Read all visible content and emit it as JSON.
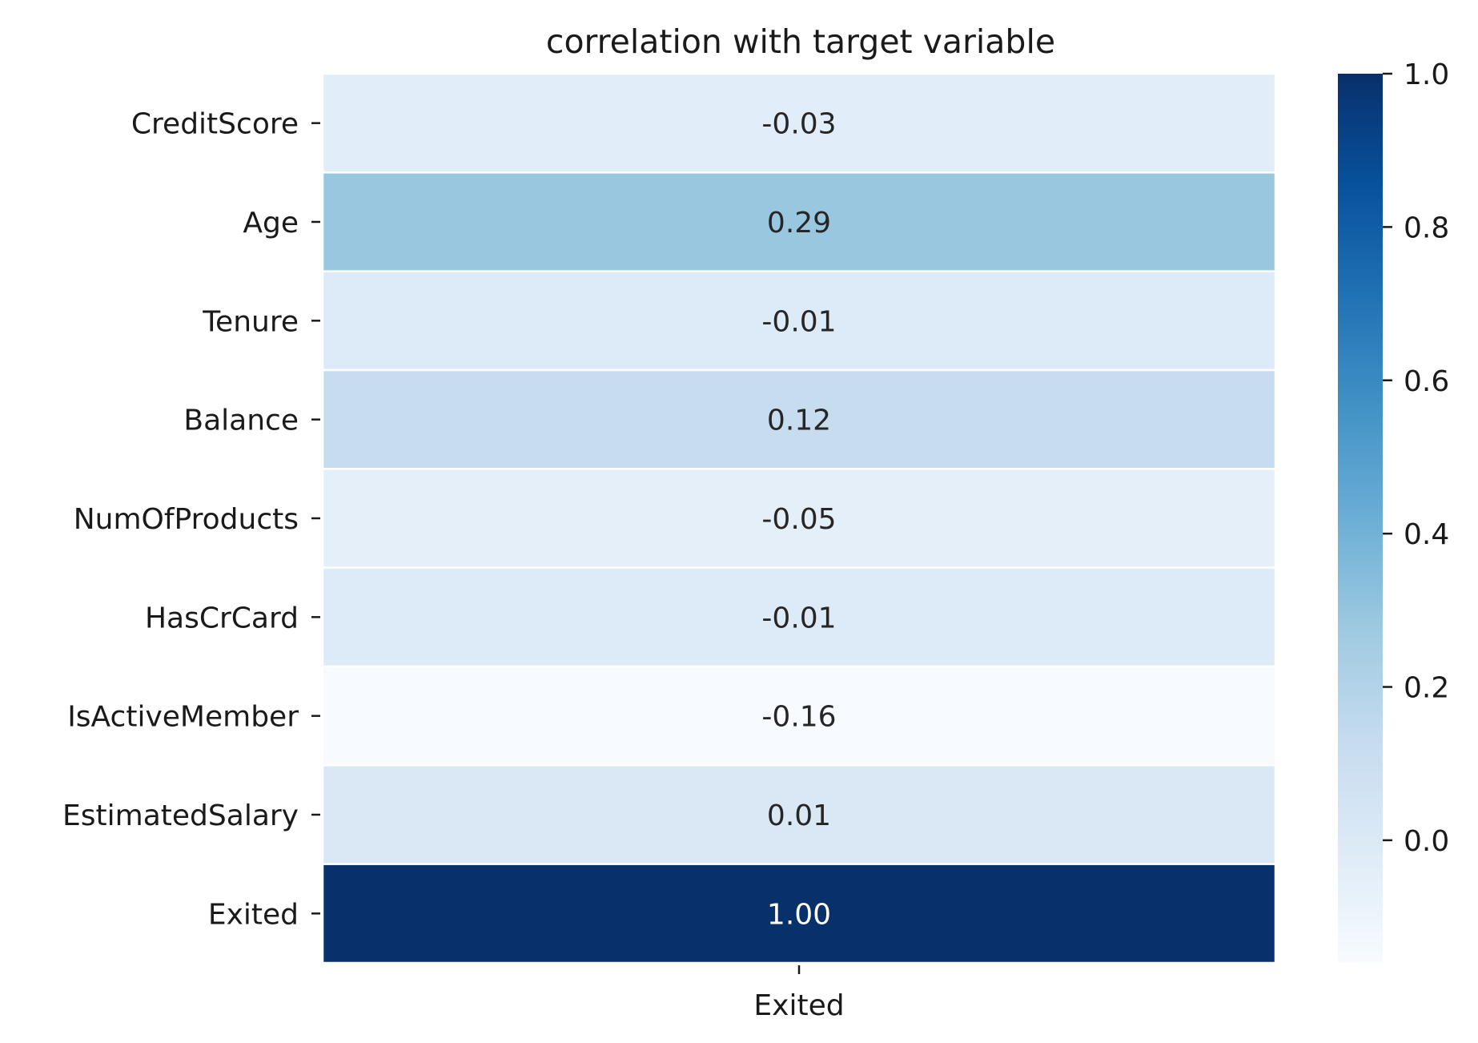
{
  "chart_data": {
    "type": "heatmap",
    "title": "correlation with target variable",
    "rows": [
      "CreditScore",
      "Age",
      "Tenure",
      "Balance",
      "NumOfProducts",
      "HasCrCard",
      "IsActiveMember",
      "EstimatedSalary",
      "Exited"
    ],
    "columns": [
      "Exited"
    ],
    "values": [
      -0.03,
      0.29,
      -0.01,
      0.12,
      -0.05,
      -0.01,
      -0.16,
      0.01,
      1.0
    ],
    "value_labels": [
      "-0.03",
      "0.29",
      "-0.01",
      "0.12",
      "-0.05",
      "-0.01",
      "-0.16",
      "0.01",
      "1.00"
    ],
    "colormap": "Blues",
    "colorbar": {
      "range": [
        -0.16,
        1.0
      ],
      "ticks": [
        0.0,
        0.2,
        0.4,
        0.6,
        0.8,
        1.0
      ],
      "tick_labels": [
        "0.0",
        "0.2",
        "0.4",
        "0.6",
        "0.8",
        "1.0"
      ],
      "placement": "right"
    },
    "colors": {
      "min": "#f7fbff",
      "max": "#08306b",
      "text_dark": "#262626",
      "text_light": "#ffffff"
    }
  }
}
